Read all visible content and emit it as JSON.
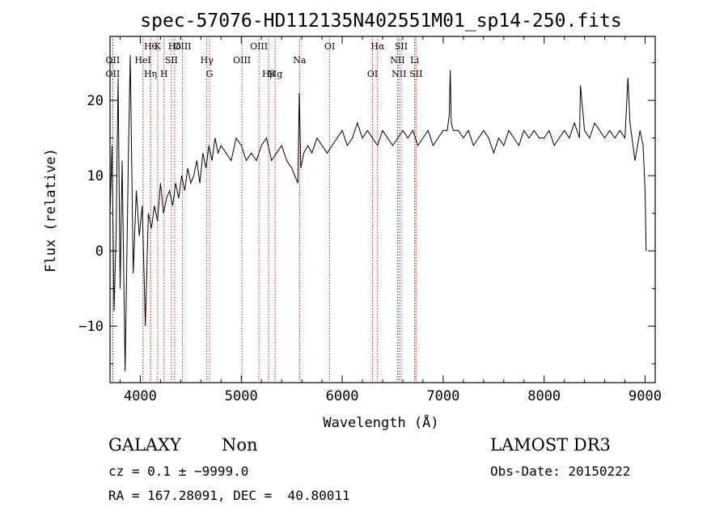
{
  "chart_data": {
    "type": "line",
    "title": "spec-57076-HD112135N402551M01_sp14-250.fits",
    "xlabel": "Wavelength (Å)",
    "ylabel": "Flux (relative)",
    "xlim": [
      3700,
      9100
    ],
    "ylim": [
      -17.5,
      28.5
    ],
    "xticks": [
      4000,
      5000,
      6000,
      7000,
      8000,
      9000
    ],
    "xtick_labels": [
      "4000",
      "5000",
      "6000",
      "7000",
      "8000",
      "9000"
    ],
    "yticks": [
      -10,
      0,
      10,
      20
    ],
    "ytick_labels": [
      "−10",
      "0",
      "10",
      "20"
    ],
    "line_color": "#000000",
    "marker_color": "#b22222",
    "series": [
      {
        "name": "flux",
        "x": [
          3700,
          3720,
          3740,
          3760,
          3780,
          3800,
          3820,
          3850,
          3880,
          3900,
          3930,
          3960,
          3990,
          4020,
          4050,
          4080,
          4110,
          4140,
          4170,
          4200,
          4230,
          4260,
          4290,
          4320,
          4350,
          4380,
          4410,
          4440,
          4470,
          4500,
          4530,
          4560,
          4590,
          4620,
          4650,
          4680,
          4710,
          4740,
          4770,
          4800,
          4850,
          4900,
          4950,
          5000,
          5050,
          5100,
          5150,
          5200,
          5250,
          5300,
          5350,
          5400,
          5450,
          5500,
          5530,
          5560,
          5575,
          5590,
          5620,
          5660,
          5700,
          5750,
          5800,
          5850,
          5900,
          5950,
          6000,
          6050,
          6100,
          6150,
          6200,
          6250,
          6300,
          6350,
          6400,
          6450,
          6500,
          6550,
          6600,
          6650,
          6700,
          6750,
          6800,
          6850,
          6900,
          6950,
          7000,
          7040,
          7060,
          7070,
          7080,
          7100,
          7150,
          7200,
          7250,
          7300,
          7350,
          7400,
          7450,
          7500,
          7550,
          7600,
          7650,
          7700,
          7750,
          7800,
          7850,
          7900,
          7950,
          8000,
          8050,
          8100,
          8150,
          8200,
          8250,
          8300,
          8350,
          8360,
          8400,
          8450,
          8500,
          8550,
          8600,
          8650,
          8700,
          8750,
          8800,
          8830,
          8850,
          8900,
          8950,
          8980,
          9000,
          9010
        ],
        "y": [
          5,
          14,
          -8,
          2,
          23,
          -5,
          12,
          -16,
          11,
          26,
          -3,
          8,
          2,
          6,
          -10,
          5,
          3,
          6,
          4,
          9,
          5,
          7,
          8,
          6,
          9,
          7,
          10,
          8,
          11,
          9,
          10,
          12,
          9,
          13,
          11,
          14,
          12,
          15,
          13,
          14,
          13,
          12,
          15,
          14,
          12,
          13,
          12,
          14,
          15,
          12,
          13,
          14,
          12,
          11,
          10,
          9,
          21,
          11,
          13,
          14,
          13,
          15,
          14,
          13,
          14,
          15,
          16,
          14,
          15,
          17,
          15,
          16,
          15,
          14,
          16,
          15,
          14,
          15,
          16,
          15,
          16,
          14,
          15,
          16,
          14,
          15,
          16,
          16,
          18,
          24,
          17,
          16,
          16,
          15,
          16,
          14,
          15,
          16,
          15,
          13,
          15,
          14,
          16,
          15,
          14,
          16,
          15,
          16,
          15,
          15,
          16,
          14,
          15,
          16,
          15,
          17,
          15,
          22,
          16,
          15,
          17,
          16,
          15,
          16,
          15,
          16,
          15,
          23,
          17,
          12,
          16,
          14,
          8,
          0
        ]
      }
    ],
    "line_markers": [
      {
        "x": 3727,
        "label": "OII",
        "row": 2
      },
      {
        "x": 3727,
        "label": "OII",
        "row": 3
      },
      {
        "x": 4026,
        "label": "HeI",
        "row": 2
      },
      {
        "x": 4101,
        "label": "Hη",
        "row": 3
      },
      {
        "x": 4102,
        "label": "Hθ",
        "row": 1
      },
      {
        "x": 4172,
        "label": "K",
        "row": 1
      },
      {
        "x": 4235,
        "label": "H",
        "row": 3
      },
      {
        "x": 4308,
        "label": "SII",
        "row": 2
      },
      {
        "x": 4340,
        "label": "Hδ",
        "row": 1
      },
      {
        "x": 4417,
        "label": "OIII",
        "row": 1
      },
      {
        "x": 4659,
        "label": "Hγ",
        "row": 2
      },
      {
        "x": 4686,
        "label": "G",
        "row": 3
      },
      {
        "x": 5007,
        "label": "OIII",
        "row": 2
      },
      {
        "x": 5175,
        "label": "OIII",
        "row": 1
      },
      {
        "x": 5270,
        "label": "Hβ",
        "row": 3
      },
      {
        "x": 5336,
        "label": "Mg",
        "row": 3
      },
      {
        "x": 5578,
        "label": "Na",
        "row": 2
      },
      {
        "x": 5876,
        "label": "OI",
        "row": 1
      },
      {
        "x": 6300,
        "label": "OI",
        "row": 3
      },
      {
        "x": 6350,
        "label": "Hα",
        "row": 1
      },
      {
        "x": 6548,
        "label": "NII",
        "row": 2
      },
      {
        "x": 6563,
        "label": "NII",
        "row": 3
      },
      {
        "x": 6584,
        "label": "SII",
        "row": 1
      },
      {
        "x": 6717,
        "label": "Li",
        "row": 2
      },
      {
        "x": 6731,
        "label": "SII",
        "row": 3
      }
    ],
    "marker_label_items": [
      {
        "label": "OII",
        "x": 3727,
        "row": 2
      },
      {
        "label": "OII",
        "x": 3727,
        "row": 3
      },
      {
        "label": "Hθ",
        "x": 4102,
        "row": 1
      },
      {
        "label": "HeI",
        "x": 4026,
        "row": 2
      },
      {
        "label": "Hη",
        "x": 4101,
        "row": 3
      },
      {
        "label": "K",
        "x": 4172,
        "row": 1
      },
      {
        "label": "H",
        "x": 4235,
        "row": 3
      },
      {
        "label": "Hδ",
        "x": 4340,
        "row": 1
      },
      {
        "label": "SII",
        "x": 4308,
        "row": 2
      },
      {
        "label": "OIII",
        "x": 4417,
        "row": 1
      },
      {
        "label": "Hγ",
        "x": 4659,
        "row": 2
      },
      {
        "label": "G",
        "x": 4686,
        "row": 3
      },
      {
        "label": "OIII",
        "x": 5175,
        "row": 1
      },
      {
        "label": "OIII",
        "x": 5007,
        "row": 2
      },
      {
        "label": "Hβ",
        "x": 5270,
        "row": 3
      },
      {
        "label": "Mg",
        "x": 5336,
        "row": 3
      },
      {
        "label": "Na",
        "x": 5578,
        "row": 2
      },
      {
        "label": "OI",
        "x": 5876,
        "row": 1
      },
      {
        "label": "OI",
        "x": 6300,
        "row": 3
      },
      {
        "label": "Hα",
        "x": 6350,
        "row": 1
      },
      {
        "label": "SII",
        "x": 6584,
        "row": 1
      },
      {
        "label": "NII",
        "x": 6548,
        "row": 2
      },
      {
        "label": "Li",
        "x": 6717,
        "row": 2
      },
      {
        "label": "NII",
        "x": 6563,
        "row": 3
      },
      {
        "label": "SII",
        "x": 6731,
        "row": 3
      }
    ]
  },
  "info": {
    "class": "GALAXY",
    "subclass": "Non",
    "survey": "LAMOST DR3",
    "cz": "cz = 0.1 ± −9999.0",
    "obs_date": "Obs-Date: 20150222",
    "radec": "RA = 167.28091, DEC =  40.80011"
  }
}
